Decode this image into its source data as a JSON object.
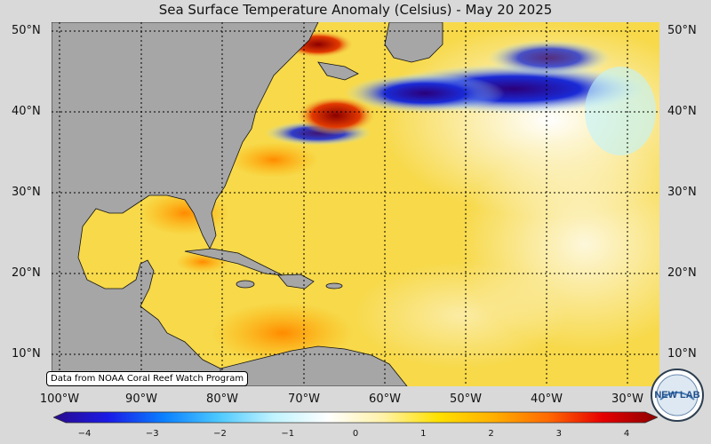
{
  "title": "Sea Surface Temperature Anomaly (Celsius) - May 20 2025",
  "latitude_labels": [
    "50°N",
    "40°N",
    "30°N",
    "20°N",
    "10°N"
  ],
  "longitude_labels": [
    "100°W",
    "90°W",
    "80°W",
    "70°W",
    "60°W",
    "50°W",
    "40°W",
    "30°W"
  ],
  "colorbar": {
    "ticks": [
      "−4",
      "−3",
      "−2",
      "−1",
      "0",
      "1",
      "2",
      "3",
      "4"
    ],
    "colors": [
      "#2a0a8c",
      "#1a1ae6",
      "#0a7fff",
      "#4cc8ff",
      "#bff3ff",
      "#ffffff",
      "#fff2a8",
      "#ffe100",
      "#ffb000",
      "#ff6a00",
      "#e60000",
      "#8c0000"
    ]
  },
  "credit": "Data from NOAA Coral Reef Watch Program",
  "logo_text": "NEW LAB",
  "colors": {
    "land": "#a6a6a6",
    "warm_base": "#f7d94a",
    "hot": "#e23a00",
    "very_hot": "#8b0000",
    "cold": "#1420b8",
    "very_cold": "#2b007a",
    "neutral": "#ffffff"
  }
}
